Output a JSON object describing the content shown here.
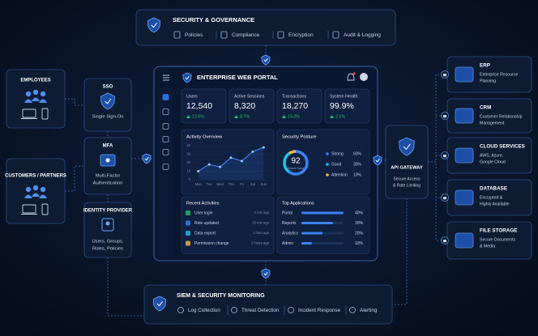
{
  "governance": {
    "title": "SECURITY & GOVERNANCE",
    "items": [
      "Policies",
      "Compliance",
      "Encryption",
      "Audit & Logging"
    ]
  },
  "users": [
    {
      "title": "EMPLOYEES"
    },
    {
      "title": "CUSTOMERS / PARTNERS"
    }
  ],
  "identity": [
    {
      "title": "SSO",
      "desc": [
        "Single Sign-On"
      ]
    },
    {
      "title": "MFA",
      "desc": [
        "Multi-Factor",
        "Authentication"
      ]
    },
    {
      "title": "IDENTITY PROVIDER",
      "desc": [
        "Users, Groups,",
        "Roles, Policies"
      ]
    }
  ],
  "portal": {
    "title": "ENTERPRISE WEB PORTAL",
    "stats": [
      {
        "label": "Users",
        "value": "12,540",
        "change": "12.5%"
      },
      {
        "label": "Active Sessions",
        "value": "8,320",
        "change": "8.7%"
      },
      {
        "label": "Transactions",
        "value": "18,270",
        "change": "15.3%"
      },
      {
        "label": "System Health",
        "value": "99.9%",
        "change": "2.1%"
      }
    ],
    "activity": {
      "title": "Activity Overview",
      "chart": {
        "type": "line",
        "categories": [
          "Mon",
          "Tue",
          "Wed",
          "Thu",
          "Fri",
          "Sat",
          "Sun"
        ],
        "values": [
          10,
          18,
          15,
          26,
          22,
          33,
          38
        ],
        "ylim": [
          0,
          40
        ],
        "yticks": [
          0,
          10,
          20,
          30,
          40
        ],
        "color": "#3b82f6"
      }
    },
    "posture": {
      "title": "Security Posture",
      "score": 92,
      "score_label": "Secure Score",
      "items": [
        {
          "name": "Strong",
          "value": 60,
          "value_label": "60%",
          "color": "#3b82f6"
        },
        {
          "name": "Good",
          "value": 30,
          "value_label": "30%",
          "color": "#22c1e6"
        },
        {
          "name": "Attention",
          "value": 10,
          "value_label": "10%",
          "color": "#f5b942"
        }
      ]
    },
    "recent": {
      "title": "Recent Activities",
      "items": [
        {
          "text": "User login",
          "time": "2 min ago"
        },
        {
          "text": "Role updated",
          "time": "15 min ago"
        },
        {
          "text": "Data export",
          "time": "1 hour ago"
        },
        {
          "text": "Permission change",
          "time": "2 hours ago"
        }
      ]
    },
    "apps": {
      "title": "Top Applications",
      "items": [
        {
          "name": "Portal",
          "value": 40,
          "value_label": "40%"
        },
        {
          "name": "Reports",
          "value": 30,
          "value_label": "30%"
        },
        {
          "name": "Analytics",
          "value": 20,
          "value_label": "20%"
        },
        {
          "name": "Admin",
          "value": 10,
          "value_label": "10%"
        }
      ]
    }
  },
  "gateway": {
    "title": "API GATEWAY",
    "desc": [
      "Secure Access",
      "& Rate Limiting"
    ]
  },
  "services": [
    {
      "title": "ERP",
      "desc": [
        "Enterprise Resource",
        "Planning"
      ]
    },
    {
      "title": "CRM",
      "desc": [
        "Customer Relationship",
        "Management"
      ]
    },
    {
      "title": "CLOUD SERVICES",
      "desc": [
        "AWS, Azure,",
        "Google Cloud"
      ]
    },
    {
      "title": "DATABASE",
      "desc": [
        "Encrypted &",
        "Highly Available"
      ]
    },
    {
      "title": "FILE STORAGE",
      "desc": [
        "Secure Documents",
        "& Media"
      ]
    }
  ],
  "monitoring": {
    "title": "SIEM & SECURITY MONITORING",
    "items": [
      "Log Collection",
      "Threat Detection",
      "Incident Response",
      "Alerting"
    ]
  }
}
